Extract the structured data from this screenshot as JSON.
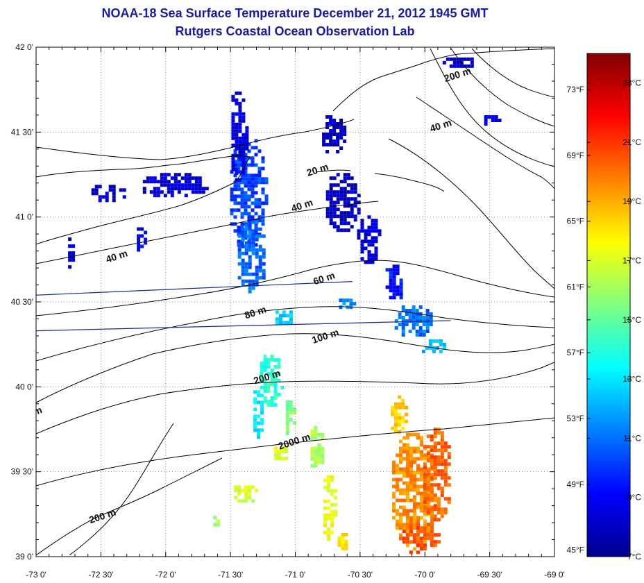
{
  "title": "NOAA-18 Sea Surface Temperature December 21, 2012 1945 GMT",
  "subtitle": "Rutgers Coastal Ocean Observation Lab",
  "map": {
    "lon_range": [
      -73,
      -69
    ],
    "lat_range": [
      39,
      42
    ],
    "lon_ticks": [
      {
        "value": -73,
        "label": "-73 0'"
      },
      {
        "value": -72.5,
        "label": "-72 30'"
      },
      {
        "value": -72,
        "label": "-72 0'"
      },
      {
        "value": -71.5,
        "label": "-71 30'"
      },
      {
        "value": -71,
        "label": "-71 0'"
      },
      {
        "value": -70.5,
        "label": "-70 30'"
      },
      {
        "value": -70,
        "label": "-70 0'"
      },
      {
        "value": -69.5,
        "label": "-69 30'"
      },
      {
        "value": -69,
        "label": "-69 0'"
      }
    ],
    "lat_ticks": [
      {
        "value": 42,
        "label": "42 0'"
      },
      {
        "value": 41.5,
        "label": "41 30'"
      },
      {
        "value": 41,
        "label": "41 0'"
      },
      {
        "value": 40.5,
        "label": "40 30'"
      },
      {
        "value": 40,
        "label": "40 0'"
      },
      {
        "value": 39.5,
        "label": "39 30'"
      },
      {
        "value": 39,
        "label": "39 0'"
      }
    ],
    "grid": true,
    "contour_labels": [
      {
        "label": "20 m",
        "lon": -70.82,
        "lat": 41.26
      },
      {
        "label": "40 m",
        "lon": -70.94,
        "lat": 41.05
      },
      {
        "label": "40 m",
        "lon": -72.37,
        "lat": 40.75
      },
      {
        "label": "40 m",
        "lon": -69.87,
        "lat": 41.52
      },
      {
        "label": "200 m",
        "lon": -69.74,
        "lat": 41.82
      },
      {
        "label": "60 m",
        "lon": -70.77,
        "lat": 40.62
      },
      {
        "label": "80 m",
        "lon": -71.3,
        "lat": 40.42
      },
      {
        "label": "100 m",
        "lon": -70.76,
        "lat": 40.28
      },
      {
        "label": "200 m",
        "lon": -71.21,
        "lat": 40.04
      },
      {
        "label": "2000 m",
        "lon": -71.0,
        "lat": 39.66
      },
      {
        "label": "200 m",
        "lon": -72.48,
        "lat": 39.22
      },
      {
        "label": "m",
        "lon": -72.98,
        "lat": 39.84
      }
    ],
    "transect_lines": [
      {
        "from": [
          -73,
          40.54
        ],
        "to": [
          -70.56,
          40.62
        ]
      },
      {
        "from": [
          -73,
          40.33
        ],
        "to": [
          -69.8,
          40.39
        ]
      }
    ]
  },
  "colorbar": {
    "min_c": 7,
    "max_c": 24,
    "celsius_ticks": [
      {
        "value": 7,
        "label": "7°C"
      },
      {
        "value": 9,
        "label": "9°C"
      },
      {
        "value": 11,
        "label": "11°C"
      },
      {
        "value": 13,
        "label": "13°C"
      },
      {
        "value": 15,
        "label": "15°C"
      },
      {
        "value": 17,
        "label": "17°C"
      },
      {
        "value": 19,
        "label": "19°C"
      },
      {
        "value": 21,
        "label": "21°C"
      },
      {
        "value": 23,
        "label": "23°C"
      }
    ],
    "fahrenheit_ticks": [
      {
        "value": 45,
        "label": "45°F"
      },
      {
        "value": 49,
        "label": "49°F"
      },
      {
        "value": 53,
        "label": "53°F"
      },
      {
        "value": 57,
        "label": "57°F"
      },
      {
        "value": 61,
        "label": "61°F"
      },
      {
        "value": 65,
        "label": "65°F"
      },
      {
        "value": 69,
        "label": "69°F"
      },
      {
        "value": 73,
        "label": "73°F"
      }
    ]
  },
  "sst_patches": [
    {
      "lon": -71.38,
      "lat": 41.15,
      "rlon": 0.15,
      "rlat": 0.35,
      "temp": 10.2
    },
    {
      "lon": -71.35,
      "lat": 40.78,
      "rlon": 0.12,
      "rlat": 0.22,
      "temp": 10.8
    },
    {
      "lon": -71.45,
      "lat": 41.5,
      "rlon": 0.07,
      "rlat": 0.28,
      "temp": 8.6
    },
    {
      "lon": -71.95,
      "lat": 41.2,
      "rlon": 0.28,
      "rlat": 0.08,
      "temp": 8.4
    },
    {
      "lon": -72.45,
      "lat": 41.15,
      "rlon": 0.15,
      "rlat": 0.06,
      "temp": 8.3
    },
    {
      "lon": -72.2,
      "lat": 40.88,
      "rlon": 0.05,
      "rlat": 0.08,
      "temp": 9.0
    },
    {
      "lon": -72.75,
      "lat": 40.78,
      "rlon": 0.03,
      "rlat": 0.12,
      "temp": 8.5
    },
    {
      "lon": -70.72,
      "lat": 41.5,
      "rlon": 0.1,
      "rlat": 0.12,
      "temp": 8.2
    },
    {
      "lon": -70.65,
      "lat": 41.1,
      "rlon": 0.14,
      "rlat": 0.18,
      "temp": 8.1
    },
    {
      "lon": -70.45,
      "lat": 40.88,
      "rlon": 0.1,
      "rlat": 0.15,
      "temp": 8.5
    },
    {
      "lon": -70.25,
      "lat": 40.62,
      "rlon": 0.08,
      "rlat": 0.12,
      "temp": 9.4
    },
    {
      "lon": -70.1,
      "lat": 40.4,
      "rlon": 0.16,
      "rlat": 0.1,
      "temp": 11.0
    },
    {
      "lon": -69.95,
      "lat": 40.25,
      "rlon": 0.1,
      "rlat": 0.05,
      "temp": 12.2
    },
    {
      "lon": -69.75,
      "lat": 41.92,
      "rlon": 0.14,
      "rlat": 0.04,
      "temp": 8.3
    },
    {
      "lon": -69.5,
      "lat": 41.58,
      "rlon": 0.07,
      "rlat": 0.04,
      "temp": 8.6
    },
    {
      "lon": -71.1,
      "lat": 40.42,
      "rlon": 0.08,
      "rlat": 0.05,
      "temp": 12.5
    },
    {
      "lon": -70.62,
      "lat": 40.5,
      "rlon": 0.07,
      "rlat": 0.04,
      "temp": 11.5
    },
    {
      "lon": -71.2,
      "lat": 40.05,
      "rlon": 0.1,
      "rlat": 0.16,
      "temp": 14.0
    },
    {
      "lon": -71.3,
      "lat": 39.85,
      "rlon": 0.05,
      "rlat": 0.15,
      "temp": 13.0
    },
    {
      "lon": -71.05,
      "lat": 39.82,
      "rlon": 0.05,
      "rlat": 0.12,
      "temp": 15.5
    },
    {
      "lon": -71.12,
      "lat": 39.62,
      "rlon": 0.07,
      "rlat": 0.05,
      "temp": 17.0
    },
    {
      "lon": -70.85,
      "lat": 39.65,
      "rlon": 0.06,
      "rlat": 0.14,
      "temp": 16.2
    },
    {
      "lon": -70.1,
      "lat": 39.4,
      "rlon": 0.18,
      "rlat": 0.35,
      "temp": 19.5
    },
    {
      "lon": -69.92,
      "lat": 39.5,
      "rlon": 0.12,
      "rlat": 0.28,
      "temp": 20.2
    },
    {
      "lon": -70.22,
      "lat": 39.85,
      "rlon": 0.07,
      "rlat": 0.12,
      "temp": 18.5
    },
    {
      "lon": -70.05,
      "lat": 39.12,
      "rlon": 0.15,
      "rlat": 0.1,
      "temp": 20.5
    },
    {
      "lon": -71.4,
      "lat": 39.38,
      "rlon": 0.1,
      "rlat": 0.06,
      "temp": 16.8
    },
    {
      "lon": -71.62,
      "lat": 39.22,
      "rlon": 0.04,
      "rlat": 0.04,
      "temp": 16.0
    },
    {
      "lon": -70.75,
      "lat": 39.3,
      "rlon": 0.06,
      "rlat": 0.2,
      "temp": 17.5
    },
    {
      "lon": -70.65,
      "lat": 39.1,
      "rlon": 0.05,
      "rlat": 0.06,
      "temp": 18.0
    }
  ]
}
